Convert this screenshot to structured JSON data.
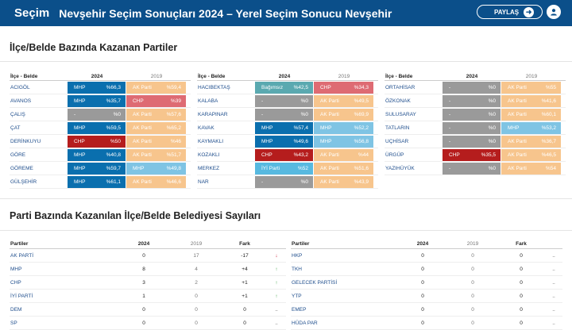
{
  "header": {
    "brand": "Seçim",
    "title": "Nevşehir Seçim Sonuçları 2024 – Yerel Seçim Sonucu Nevşehir",
    "share_label": "PAYLAŞ",
    "share_icon": "arrow-right-icon",
    "user_icon": "user-icon",
    "bg_color": "#0b4f8a"
  },
  "sections": {
    "districts_title": "İlçe/Belde Bazında Kazanan Partiler",
    "parties_title": "Parti Bazında Kazanılan İlçe/Belde Belediyesi Sayıları"
  },
  "party_colors": {
    "MHP": "#0a6fae",
    "AK Parti": "#f7c58d",
    "CHP": "#d33838",
    "CHP_prev": "#de6b73",
    "İYİ Parti": "#57b9e0",
    "MHP_prev": "#7fc4e4",
    "Bağımsız": "#5aa9b0",
    "none": "#9a9a9a"
  },
  "district_grid": {
    "col_name": "İlçe - Belde",
    "col_2024": "2024",
    "col_2019": "2019",
    "columns": [
      [
        {
          "name": "ACIGÖL",
          "cur_party": "MHP",
          "cur_pct": "%66,3",
          "cur_color": "#0a6fae",
          "prev_party": "AK Parti",
          "prev_pct": "%59,4",
          "prev_color": "#f7c58d"
        },
        {
          "name": "AVANOS",
          "cur_party": "MHP",
          "cur_pct": "%35,7",
          "cur_color": "#0a6fae",
          "prev_party": "CHP",
          "prev_pct": "%39",
          "prev_color": "#de6b73"
        },
        {
          "name": "ÇALIŞ",
          "cur_party": "-",
          "cur_pct": "%0",
          "cur_color": "#9a9a9a",
          "prev_party": "AK Parti",
          "prev_pct": "%57,6",
          "prev_color": "#f7c58d"
        },
        {
          "name": "ÇAT",
          "cur_party": "MHP",
          "cur_pct": "%59,5",
          "cur_color": "#0a6fae",
          "prev_party": "AK Parti",
          "prev_pct": "%65,2",
          "prev_color": "#f7c58d"
        },
        {
          "name": "DERİNKUYU",
          "cur_party": "CHP",
          "cur_pct": "%50",
          "cur_color": "#b51d1d",
          "prev_party": "AK Parti",
          "prev_pct": "%46",
          "prev_color": "#f7c58d"
        },
        {
          "name": "GÖRE",
          "cur_party": "MHP",
          "cur_pct": "%40,8",
          "cur_color": "#0a6fae",
          "prev_party": "AK Parti",
          "prev_pct": "%51,7",
          "prev_color": "#f7c58d"
        },
        {
          "name": "GÖREME",
          "cur_party": "MHP",
          "cur_pct": "%59,7",
          "cur_color": "#0a6fae",
          "prev_party": "MHP",
          "prev_pct": "%49,8",
          "prev_color": "#7fc4e4"
        },
        {
          "name": "GÜLŞEHİR",
          "cur_party": "MHP",
          "cur_pct": "%61,1",
          "cur_color": "#0a6fae",
          "prev_party": "AK Parti",
          "prev_pct": "%46,6",
          "prev_color": "#f7c58d"
        }
      ],
      [
        {
          "name": "HACIBEKTAŞ",
          "cur_party": "Bağımsız",
          "cur_pct": "%42,5",
          "cur_color": "#5aa9b0",
          "prev_party": "CHP",
          "prev_pct": "%34,3",
          "prev_color": "#de6b73"
        },
        {
          "name": "KALABA",
          "cur_party": "-",
          "cur_pct": "%0",
          "cur_color": "#9a9a9a",
          "prev_party": "AK Parti",
          "prev_pct": "%49,5",
          "prev_color": "#f7c58d"
        },
        {
          "name": "KARAPINAR",
          "cur_party": "-",
          "cur_pct": "%0",
          "cur_color": "#9a9a9a",
          "prev_party": "AK Parti",
          "prev_pct": "%69,9",
          "prev_color": "#f7c58d"
        },
        {
          "name": "KAVAK",
          "cur_party": "MHP",
          "cur_pct": "%57,4",
          "cur_color": "#0a6fae",
          "prev_party": "MHP",
          "prev_pct": "%52,2",
          "prev_color": "#7fc4e4"
        },
        {
          "name": "KAYMAKLI",
          "cur_party": "MHP",
          "cur_pct": "%49,6",
          "cur_color": "#0a6fae",
          "prev_party": "MHP",
          "prev_pct": "%56,8",
          "prev_color": "#7fc4e4"
        },
        {
          "name": "KOZAKLI",
          "cur_party": "CHP",
          "cur_pct": "%43,2",
          "cur_color": "#b51d1d",
          "prev_party": "AK Parti",
          "prev_pct": "%44",
          "prev_color": "#f7c58d"
        },
        {
          "name": "MERKEZ",
          "cur_party": "İYİ Parti",
          "cur_pct": "%52",
          "cur_color": "#57b9e0",
          "prev_party": "AK Parti",
          "prev_pct": "%51,6",
          "prev_color": "#f7c58d"
        },
        {
          "name": "NAR",
          "cur_party": "-",
          "cur_pct": "%0",
          "cur_color": "#9a9a9a",
          "prev_party": "AK Parti",
          "prev_pct": "%43,9",
          "prev_color": "#f7c58d"
        }
      ],
      [
        {
          "name": "ORTAHİSAR",
          "cur_party": "-",
          "cur_pct": "%0",
          "cur_color": "#9a9a9a",
          "prev_party": "AK Parti",
          "prev_pct": "%55",
          "prev_color": "#f7c58d"
        },
        {
          "name": "ÖZKONAK",
          "cur_party": "-",
          "cur_pct": "%0",
          "cur_color": "#9a9a9a",
          "prev_party": "AK Parti",
          "prev_pct": "%41,6",
          "prev_color": "#f7c58d"
        },
        {
          "name": "SULUSARAY",
          "cur_party": "-",
          "cur_pct": "%0",
          "cur_color": "#9a9a9a",
          "prev_party": "AK Parti",
          "prev_pct": "%60,1",
          "prev_color": "#f7c58d"
        },
        {
          "name": "TATLARIN",
          "cur_party": "-",
          "cur_pct": "%0",
          "cur_color": "#9a9a9a",
          "prev_party": "MHP",
          "prev_pct": "%53,2",
          "prev_color": "#7fc4e4"
        },
        {
          "name": "UÇHİSAR",
          "cur_party": "-",
          "cur_pct": "%0",
          "cur_color": "#9a9a9a",
          "prev_party": "AK Parti",
          "prev_pct": "%36,7",
          "prev_color": "#f7c58d"
        },
        {
          "name": "ÜRGÜP",
          "cur_party": "CHP",
          "cur_pct": "%35,5",
          "cur_color": "#b51d1d",
          "prev_party": "AK Parti",
          "prev_pct": "%46,5",
          "prev_color": "#f7c58d"
        },
        {
          "name": "YAZIHÜYÜK",
          "cur_party": "-",
          "cur_pct": "%0",
          "cur_color": "#9a9a9a",
          "prev_party": "AK Parti",
          "prev_pct": "%54",
          "prev_color": "#f7c58d"
        }
      ]
    ]
  },
  "party_table": {
    "col_party": "Partiler",
    "col_2024": "2024",
    "col_2019": "2019",
    "col_diff": "Fark",
    "left": [
      {
        "party": "AK PARTİ",
        "y2024": "0",
        "y2019": "17",
        "diff": "-17",
        "trend": "down"
      },
      {
        "party": "MHP",
        "y2024": "8",
        "y2019": "4",
        "diff": "+4",
        "trend": "up"
      },
      {
        "party": "CHP",
        "y2024": "3",
        "y2019": "2",
        "diff": "+1",
        "trend": "up"
      },
      {
        "party": "İYİ PARTİ",
        "y2024": "1",
        "y2019": "0",
        "diff": "+1",
        "trend": "up"
      },
      {
        "party": "DEM",
        "y2024": "0",
        "y2019": "0",
        "diff": "0",
        "trend": "flat"
      },
      {
        "party": "SP",
        "y2024": "0",
        "y2019": "0",
        "diff": "0",
        "trend": "flat"
      }
    ],
    "right": [
      {
        "party": "HKP",
        "y2024": "0",
        "y2019": "0",
        "diff": "0",
        "trend": "flat"
      },
      {
        "party": "TKH",
        "y2024": "0",
        "y2019": "0",
        "diff": "0",
        "trend": "flat"
      },
      {
        "party": "GELECEK PARTİSİ",
        "y2024": "0",
        "y2019": "0",
        "diff": "0",
        "trend": "flat"
      },
      {
        "party": "YTP",
        "y2024": "0",
        "y2019": "0",
        "diff": "0",
        "trend": "flat"
      },
      {
        "party": "EMEP",
        "y2024": "0",
        "y2019": "0",
        "diff": "0",
        "trend": "flat"
      },
      {
        "party": "HÜDA PAR",
        "y2024": "0",
        "y2019": "0",
        "diff": "0",
        "trend": "flat"
      }
    ]
  }
}
